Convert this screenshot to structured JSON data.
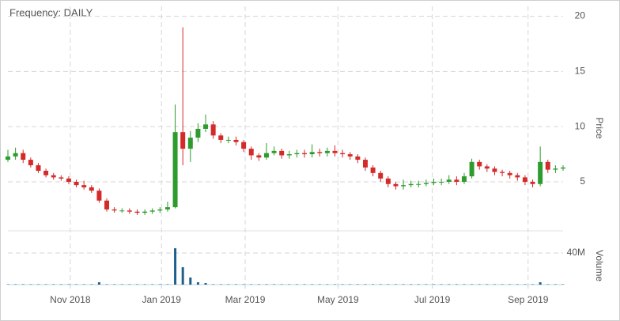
{
  "chart_data": {
    "type": "candlestick",
    "title": "Frequency: DAILY",
    "y_label": "Price",
    "up_color": "#2e9b2e",
    "down_color": "#d42a2a",
    "xlim": [
      0,
      365
    ],
    "xticks": [
      {
        "value": 41,
        "label": "Nov 2018"
      },
      {
        "value": 101,
        "label": "Jan 2019"
      },
      {
        "value": 156,
        "label": "Mar 2019"
      },
      {
        "value": 217,
        "label": "May 2019"
      },
      {
        "value": 279,
        "label": "Jul 2019"
      },
      {
        "value": 342,
        "label": "Sep 2019"
      }
    ],
    "ylim": [
      0.7,
      20.9
    ],
    "yticks": [
      5,
      10,
      15,
      20
    ],
    "grid": true,
    "x": [
      0,
      5,
      10,
      15,
      20,
      25,
      30,
      35,
      40,
      45,
      50,
      55,
      60,
      65,
      70,
      75,
      80,
      85,
      90,
      95,
      100,
      105,
      110,
      115,
      120,
      125,
      130,
      135,
      140,
      145,
      150,
      155,
      160,
      165,
      170,
      175,
      180,
      185,
      190,
      195,
      200,
      205,
      210,
      215,
      220,
      225,
      230,
      235,
      240,
      245,
      250,
      255,
      260,
      265,
      270,
      275,
      280,
      285,
      290,
      295,
      300,
      305,
      310,
      315,
      320,
      325,
      330,
      335,
      340,
      345,
      350,
      355,
      360,
      365
    ],
    "open": [
      7.0,
      7.3,
      7.6,
      7.0,
      6.5,
      6.0,
      5.6,
      5.4,
      5.3,
      5.0,
      4.7,
      4.5,
      4.2,
      3.3,
      2.5,
      2.4,
      2.4,
      2.3,
      2.2,
      2.3,
      2.4,
      2.5,
      2.7,
      9.5,
      8.0,
      9.0,
      9.8,
      10.2,
      9.2,
      8.8,
      8.8,
      8.6,
      8.0,
      7.4,
      7.2,
      7.6,
      7.8,
      7.4,
      7.5,
      7.6,
      7.5,
      7.7,
      7.6,
      7.8,
      7.6,
      7.5,
      7.3,
      7.0,
      6.3,
      5.8,
      5.3,
      4.8,
      4.6,
      4.7,
      4.8,
      4.8,
      4.9,
      5.0,
      5.0,
      5.2,
      5.0,
      5.5,
      6.8,
      6.4,
      6.2,
      5.9,
      5.8,
      5.6,
      5.4,
      5.0,
      4.8,
      6.8,
      6.1,
      6.2
    ],
    "high": [
      7.9,
      8.1,
      7.9,
      7.2,
      6.7,
      6.2,
      5.8,
      5.6,
      5.5,
      5.2,
      5.1,
      4.7,
      4.4,
      3.5,
      2.7,
      2.6,
      2.6,
      2.5,
      2.5,
      2.6,
      2.7,
      3.2,
      12.0,
      19.0,
      9.6,
      10.3,
      11.1,
      10.5,
      9.4,
      9.1,
      9.1,
      8.8,
      8.2,
      7.6,
      8.5,
      8.2,
      8.0,
      7.8,
      7.9,
      7.9,
      8.4,
      8.0,
      8.1,
      8.3,
      7.9,
      7.7,
      7.5,
      7.2,
      6.5,
      6.0,
      5.5,
      5.0,
      5.2,
      5.1,
      5.1,
      5.2,
      5.3,
      5.3,
      5.6,
      5.5,
      5.8,
      7.1,
      7.0,
      6.6,
      6.4,
      6.1,
      6.0,
      5.8,
      5.6,
      5.2,
      8.2,
      7.0,
      6.5,
      6.5
    ],
    "low": [
      6.8,
      7.0,
      6.7,
      6.3,
      5.8,
      5.4,
      5.2,
      5.1,
      4.8,
      4.5,
      4.3,
      4.0,
      3.1,
      2.3,
      2.2,
      2.2,
      2.1,
      2.0,
      2.0,
      2.1,
      2.2,
      2.3,
      2.6,
      6.5,
      6.8,
      8.6,
      9.5,
      8.9,
      8.5,
      8.5,
      8.3,
      7.7,
      7.0,
      6.9,
      7.0,
      7.4,
      7.1,
      7.1,
      7.2,
      7.2,
      7.2,
      7.3,
      7.3,
      7.3,
      7.2,
      7.0,
      6.7,
      6.0,
      5.5,
      5.0,
      4.5,
      4.3,
      4.3,
      4.5,
      4.5,
      4.6,
      4.7,
      4.7,
      4.8,
      4.7,
      4.8,
      5.3,
      6.1,
      5.9,
      5.6,
      5.5,
      5.3,
      5.1,
      4.7,
      4.5,
      4.6,
      5.8,
      5.8,
      6.0
    ],
    "close": [
      7.3,
      7.6,
      7.0,
      6.5,
      6.0,
      5.6,
      5.4,
      5.3,
      5.0,
      4.7,
      4.5,
      4.2,
      3.3,
      2.5,
      2.4,
      2.4,
      2.3,
      2.2,
      2.3,
      2.4,
      2.5,
      2.7,
      9.5,
      8.0,
      9.0,
      9.8,
      10.2,
      9.2,
      8.8,
      8.8,
      8.6,
      8.0,
      7.4,
      7.2,
      7.6,
      7.8,
      7.4,
      7.5,
      7.6,
      7.5,
      7.7,
      7.6,
      7.8,
      7.6,
      7.5,
      7.3,
      7.0,
      6.3,
      5.8,
      5.3,
      4.8,
      4.6,
      4.7,
      4.8,
      4.8,
      4.9,
      5.0,
      5.0,
      5.2,
      5.0,
      5.5,
      6.8,
      6.4,
      6.2,
      5.9,
      5.8,
      5.6,
      5.4,
      5.0,
      4.8,
      6.8,
      6.1,
      6.2,
      6.3
    ],
    "volume": {
      "type": "bar",
      "y_label": "Volume",
      "color": "#1f5f8b",
      "ylim": [
        0,
        68000000
      ],
      "yticks": [
        {
          "value": 40000000,
          "label": "40M"
        }
      ],
      "values": [
        500000,
        500000,
        500000,
        500000,
        500000,
        500000,
        500000,
        500000,
        500000,
        500000,
        500000,
        500000,
        3000000,
        500000,
        500000,
        500000,
        500000,
        500000,
        500000,
        500000,
        500000,
        500000,
        46000000,
        22000000,
        9000000,
        3000000,
        2000000,
        500000,
        500000,
        500000,
        500000,
        500000,
        500000,
        500000,
        500000,
        500000,
        500000,
        500000,
        500000,
        500000,
        500000,
        500000,
        500000,
        500000,
        500000,
        500000,
        500000,
        500000,
        500000,
        500000,
        500000,
        500000,
        500000,
        500000,
        500000,
        500000,
        500000,
        500000,
        500000,
        500000,
        500000,
        500000,
        500000,
        500000,
        500000,
        500000,
        500000,
        500000,
        500000,
        500000,
        3000000,
        500000,
        500000,
        500000
      ]
    }
  }
}
